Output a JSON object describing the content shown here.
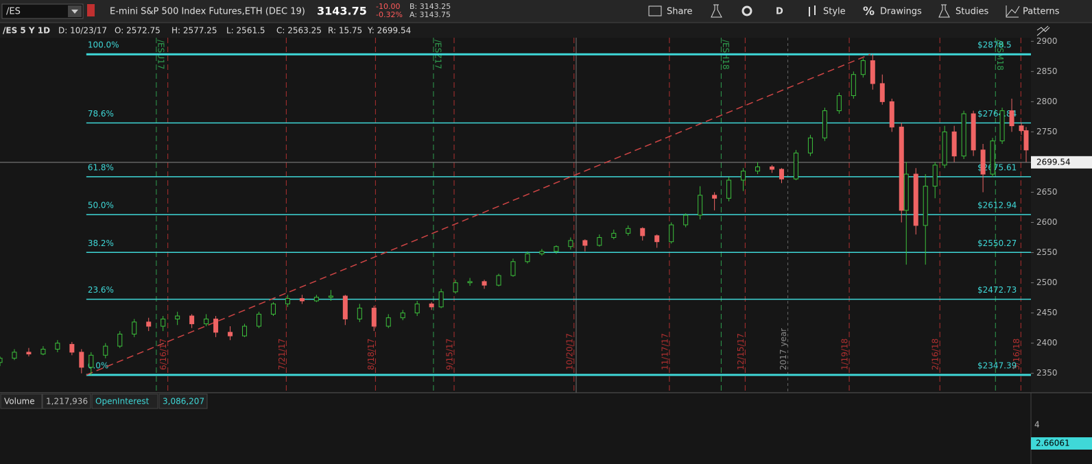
{
  "toolbar": {
    "symbol": "/ES",
    "description": "E-mini S&P 500 Index Futures,ETH (DEC 19)",
    "price": "3143.75",
    "change": "-10.00",
    "change_pct": "-0.32%",
    "bid": "B: 3143.25",
    "ask": "A: 3143.75",
    "buttons": [
      "Share",
      "D",
      "Style",
      "Drawings",
      "Studies",
      "Patterns"
    ]
  },
  "info_bar": [
    "/ES 5 Y 1D",
    "D: 10/23/17",
    "O: 2572.75",
    "H: 2577.25",
    "L: 2561.5",
    "C: 2563.25",
    "R: 15.75",
    "Y: 2699.54"
  ],
  "chart_data": {
    "type": "candlestick",
    "up_color": "#3cc23c",
    "down_color": "#f06464",
    "grid": false,
    "xlim": [
      0,
      215
    ],
    "ylim": [
      2319,
      2906
    ],
    "yticks": [
      2350,
      2400,
      2450,
      2500,
      2550,
      2600,
      2650,
      2700,
      2750,
      2800,
      2850,
      2900
    ],
    "xticks": [
      {
        "value": 35,
        "label": "6/16/17"
      },
      {
        "value": 59.7,
        "label": "7/21/17"
      },
      {
        "value": 78.3,
        "label": "8/18/17"
      },
      {
        "value": 94.7,
        "label": "9/15/17"
      },
      {
        "value": 119.7,
        "label": "10/20/17"
      },
      {
        "value": 139.6,
        "label": "11/17/17"
      },
      {
        "value": 155.4,
        "label": "12/15/17"
      },
      {
        "value": 177.1,
        "label": "1/19/18"
      },
      {
        "value": 196,
        "label": "2/16/18"
      },
      {
        "value": 212.9,
        "label": "3/16/18"
      }
    ],
    "contract_lines": [
      {
        "value": 32.6,
        "label": "/ESU17"
      },
      {
        "value": 90.4,
        "label": "/ESZ17"
      },
      {
        "value": 150.4,
        "label": "/ESH18"
      },
      {
        "value": 207.6,
        "label": "/ESM18"
      }
    ],
    "year_line": {
      "value": 164.3,
      "label": "2017 year"
    },
    "last_price": 2699.54,
    "fib_x": [
      18,
      181.5
    ],
    "fib_levels": [
      {
        "label": "100.0%",
        "value": 2878.5,
        "price_label": "$2878.5"
      },
      {
        "label": "78.6%",
        "value": 2764.84,
        "price_label": "$2764.84"
      },
      {
        "label": "61.8%",
        "value": 2675.61,
        "price_label": "$2675.61"
      },
      {
        "label": "50.0%",
        "value": 2612.94,
        "price_label": "$2612.94"
      },
      {
        "label": "38.2%",
        "value": 2550.27,
        "price_label": "$2550.27"
      },
      {
        "label": "23.6%",
        "value": 2472.73,
        "price_label": "$2472.73"
      },
      {
        "label": "0.0%",
        "value": 2347.39,
        "price_label": "$2347.39"
      }
    ],
    "candles": {
      "x": [
        0,
        3,
        6,
        9,
        12,
        15,
        17,
        19,
        22,
        25,
        28,
        31,
        34,
        37,
        40,
        43,
        45,
        48,
        51,
        54,
        57,
        60,
        63,
        66,
        69,
        72,
        75,
        78,
        81,
        84,
        87,
        90,
        92,
        95,
        98,
        101,
        104,
        107,
        110,
        113,
        116,
        119,
        122,
        125,
        128,
        131,
        134,
        137,
        140,
        143,
        146,
        149,
        152,
        155,
        158,
        161,
        163,
        166,
        169,
        172,
        175,
        178,
        180,
        182,
        184,
        186,
        188,
        189,
        191,
        193,
        195,
        197,
        199,
        201,
        203,
        205,
        207,
        209,
        211,
        213,
        214
      ],
      "open": [
        2368,
        2375,
        2385,
        2382,
        2390,
        2398,
        2385,
        2360,
        2380,
        2395,
        2415,
        2435,
        2428,
        2440,
        2445,
        2432,
        2440,
        2418,
        2412,
        2428,
        2448,
        2465,
        2474,
        2470,
        2476,
        2478,
        2440,
        2458,
        2428,
        2442,
        2450,
        2465,
        2460,
        2485,
        2500,
        2502,
        2496,
        2512,
        2535,
        2548,
        2552,
        2560,
        2570,
        2562,
        2575,
        2582,
        2590,
        2578,
        2568,
        2596,
        2612,
        2645,
        2640,
        2670,
        2685,
        2692,
        2688,
        2672,
        2715,
        2740,
        2785,
        2810,
        2845,
        2868,
        2830,
        2800,
        2758,
        2620,
        2680,
        2595,
        2660,
        2695,
        2750,
        2710,
        2780,
        2720,
        2680,
        2735,
        2785,
        2760,
        2752
      ],
      "high": [
        2378,
        2390,
        2392,
        2395,
        2405,
        2402,
        2390,
        2385,
        2400,
        2420,
        2440,
        2442,
        2445,
        2452,
        2448,
        2448,
        2445,
        2428,
        2432,
        2452,
        2468,
        2480,
        2480,
        2480,
        2488,
        2480,
        2465,
        2462,
        2448,
        2455,
        2470,
        2468,
        2490,
        2505,
        2508,
        2505,
        2515,
        2540,
        2552,
        2556,
        2562,
        2575,
        2572,
        2580,
        2588,
        2595,
        2592,
        2580,
        2600,
        2615,
        2660,
        2650,
        2675,
        2690,
        2700,
        2695,
        2690,
        2720,
        2745,
        2790,
        2815,
        2850,
        2872,
        2878.5,
        2845,
        2805,
        2765,
        2700,
        2690,
        2680,
        2700,
        2760,
        2760,
        2785,
        2785,
        2730,
        2740,
        2790,
        2805,
        2765,
        2758
      ],
      "low": [
        2362,
        2372,
        2378,
        2380,
        2385,
        2380,
        2350,
        2347,
        2375,
        2392,
        2410,
        2420,
        2420,
        2430,
        2425,
        2428,
        2410,
        2405,
        2410,
        2425,
        2445,
        2460,
        2465,
        2468,
        2470,
        2430,
        2435,
        2420,
        2425,
        2438,
        2445,
        2455,
        2458,
        2482,
        2495,
        2490,
        2494,
        2510,
        2532,
        2545,
        2548,
        2555,
        2552,
        2560,
        2572,
        2578,
        2570,
        2558,
        2565,
        2592,
        2605,
        2620,
        2635,
        2652,
        2680,
        2682,
        2665,
        2670,
        2710,
        2735,
        2780,
        2805,
        2840,
        2820,
        2795,
        2750,
        2600,
        2530,
        2580,
        2530,
        2640,
        2690,
        2700,
        2705,
        2710,
        2650,
        2675,
        2730,
        2750,
        2745,
        2700
      ],
      "close": [
        2375,
        2385,
        2382,
        2390,
        2400,
        2385,
        2360,
        2380,
        2395,
        2415,
        2435,
        2428,
        2440,
        2445,
        2432,
        2440,
        2418,
        2412,
        2428,
        2448,
        2465,
        2474,
        2470,
        2476,
        2478,
        2440,
        2458,
        2428,
        2442,
        2450,
        2465,
        2460,
        2485,
        2500,
        2502,
        2496,
        2512,
        2535,
        2548,
        2552,
        2560,
        2570,
        2562,
        2575,
        2582,
        2590,
        2578,
        2568,
        2596,
        2612,
        2645,
        2640,
        2670,
        2685,
        2692,
        2688,
        2672,
        2715,
        2740,
        2785,
        2810,
        2845,
        2868,
        2830,
        2800,
        2758,
        2620,
        2680,
        2595,
        2660,
        2695,
        2750,
        2710,
        2780,
        2720,
        2680,
        2735,
        2785,
        2760,
        2752,
        2720
      ]
    }
  },
  "volume_pane": {
    "volume_label": "Volume",
    "volume_value": "1,217,936",
    "oi_label": "OpenInterest",
    "oi_value": "3,086,207",
    "axis_label": "4",
    "oi_last": "2.66061"
  }
}
